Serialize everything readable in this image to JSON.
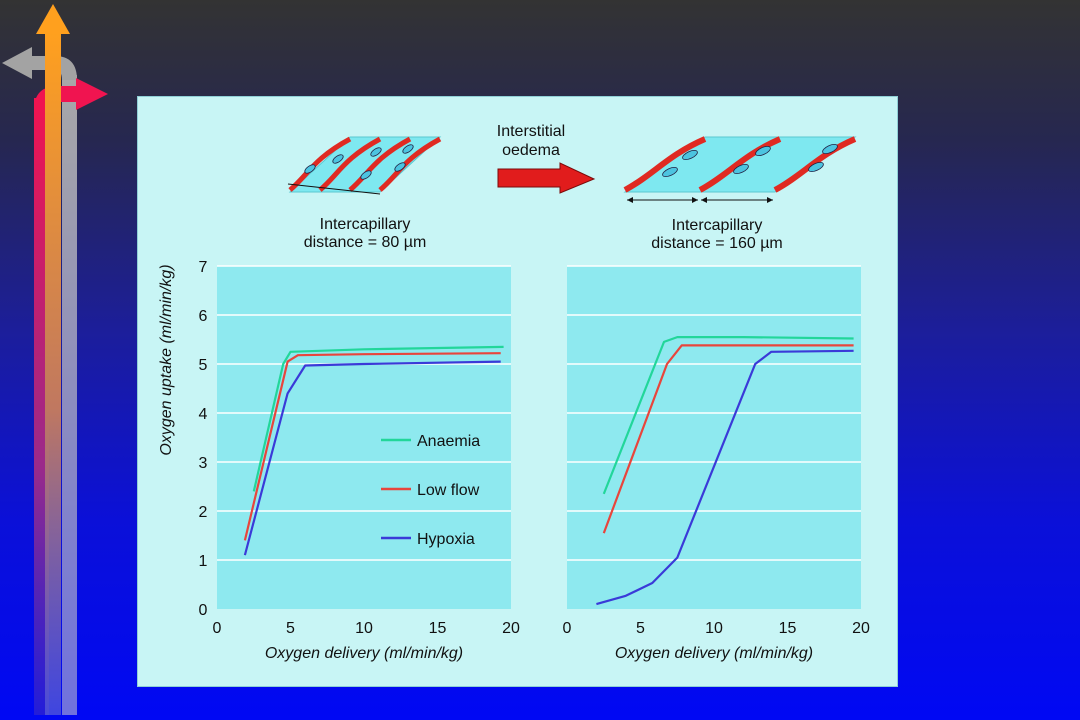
{
  "colors": {
    "background_top": "#333333",
    "background_bottom": "#0008f4",
    "panel": "#c8f5f5",
    "plot_area": "#8ee9ef",
    "capillary": "#e02a22",
    "interstitial": "#7ee8f0",
    "arrow": "#e11c1c"
  },
  "diagram": {
    "left_caption_line1": "Intercapillary",
    "left_caption_line2": "distance = 80 µm",
    "right_caption_line1": "Intercapillary",
    "right_caption_line2": "distance = 160 µm",
    "arrow_label_line1": "Interstitial",
    "arrow_label_line2": "oedema"
  },
  "legend": [
    {
      "name": "Anaemia",
      "color": "#22d69a"
    },
    {
      "name": "Low flow",
      "color": "#e8453c"
    },
    {
      "name": "Hypoxia",
      "color": "#3a3ad8"
    }
  ],
  "chart_data": [
    {
      "type": "line",
      "xlabel": "Oxygen delivery (ml/min/kg)",
      "ylabel": "Oxygen uptake (ml/min/kg)",
      "xlim": [
        0,
        20
      ],
      "ylim": [
        0,
        7
      ],
      "x_ticks": [
        0,
        5,
        10,
        15,
        20
      ],
      "y_ticks": [
        0,
        1,
        2,
        3,
        4,
        5,
        6,
        7
      ],
      "grid": "horizontal",
      "legend_position": "lower-right",
      "series": [
        {
          "name": "Anaemia",
          "color": "#22d69a",
          "points": [
            [
              2.5,
              2.4
            ],
            [
              4.5,
              5.0
            ],
            [
              5.0,
              5.25
            ],
            [
              10,
              5.3
            ],
            [
              19.5,
              5.35
            ]
          ]
        },
        {
          "name": "Low flow",
          "color": "#e8453c",
          "points": [
            [
              1.9,
              1.4
            ],
            [
              4.8,
              5.05
            ],
            [
              5.5,
              5.18
            ],
            [
              10,
              5.2
            ],
            [
              19.3,
              5.22
            ]
          ]
        },
        {
          "name": "Hypoxia",
          "color": "#3a3ad8",
          "points": [
            [
              1.9,
              1.1
            ],
            [
              4.8,
              4.4
            ],
            [
              6.0,
              4.97
            ],
            [
              10,
              5.0
            ],
            [
              19.3,
              5.05
            ]
          ]
        }
      ]
    },
    {
      "type": "line",
      "xlabel": "Oxygen delivery (ml/min/kg)",
      "ylabel": "",
      "xlim": [
        0,
        20
      ],
      "ylim": [
        0,
        7
      ],
      "x_ticks": [
        0,
        5,
        10,
        15,
        20
      ],
      "y_ticks": [],
      "grid": "horizontal",
      "series": [
        {
          "name": "Anaemia",
          "color": "#22d69a",
          "points": [
            [
              2.5,
              2.35
            ],
            [
              6.6,
              5.45
            ],
            [
              7.5,
              5.55
            ],
            [
              12,
              5.55
            ],
            [
              19.5,
              5.52
            ]
          ]
        },
        {
          "name": "Low flow",
          "color": "#e8453c",
          "points": [
            [
              2.5,
              1.55
            ],
            [
              6.8,
              5.0
            ],
            [
              7.8,
              5.38
            ],
            [
              12,
              5.38
            ],
            [
              19.5,
              5.38
            ]
          ]
        },
        {
          "name": "Hypoxia",
          "color": "#3a3ad8",
          "points": [
            [
              2.0,
              0.1
            ],
            [
              4.0,
              0.27
            ],
            [
              5.8,
              0.53
            ],
            [
              7.5,
              1.05
            ],
            [
              12.8,
              5.0
            ],
            [
              13.9,
              5.25
            ],
            [
              19.5,
              5.27
            ]
          ]
        }
      ]
    }
  ]
}
